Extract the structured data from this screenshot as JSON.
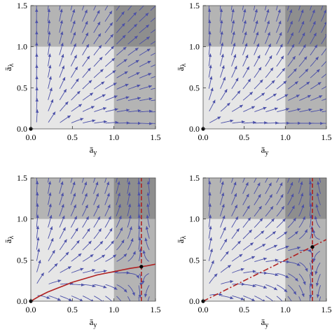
{
  "chart_data": [
    {
      "type": "streamplot",
      "panel": "top-left",
      "xlabel": "a_y",
      "ylabel": "a_λ",
      "xlim": [
        0,
        1.5
      ],
      "ylim": [
        0,
        1.5
      ],
      "xticks": [
        "0.0",
        "0.5",
        "1.0",
        "1.5"
      ],
      "yticks": [
        "0.0",
        "0.5",
        "1.0",
        "1.5"
      ],
      "shaded_regions": [
        {
          "name": "light",
          "x": [
            0,
            1.0
          ],
          "y": [
            0,
            1.0
          ],
          "color": "#e6e6e6"
        },
        {
          "name": "medium",
          "x": [
            0,
            1.5
          ],
          "y": [
            1.0,
            1.5
          ],
          "color": "#b4b4b4"
        },
        {
          "name": "medium",
          "x": [
            1.0,
            1.5
          ],
          "y": [
            0,
            1.0
          ],
          "color": "#b4b4b4"
        },
        {
          "name": "dark",
          "x": [
            1.0,
            1.5
          ],
          "y": [
            1.0,
            1.5
          ],
          "color": "#8e8e8e"
        }
      ],
      "fixed_points": [
        {
          "x": 0,
          "y": 0
        }
      ],
      "red_curves": [],
      "stream_color": "#4a4fa8",
      "curve_color": "#b02020"
    },
    {
      "type": "streamplot",
      "panel": "top-right",
      "xlabel": "a_y",
      "ylabel": "a_λ",
      "xlim": [
        0,
        1.5
      ],
      "ylim": [
        0,
        1.5
      ],
      "xticks": [
        "0.0",
        "0.5",
        "1.0",
        "1.5"
      ],
      "yticks": [
        "0.0",
        "0.5",
        "1.0",
        "1.5"
      ],
      "shaded_regions": [
        {
          "name": "light",
          "x": [
            0,
            1.0
          ],
          "y": [
            0,
            1.0
          ],
          "color": "#e6e6e6"
        },
        {
          "name": "medium",
          "x": [
            0,
            1.5
          ],
          "y": [
            1.0,
            1.5
          ],
          "color": "#b4b4b4"
        },
        {
          "name": "medium",
          "x": [
            1.0,
            1.5
          ],
          "y": [
            0,
            1.0
          ],
          "color": "#b4b4b4"
        },
        {
          "name": "dark",
          "x": [
            1.0,
            1.5
          ],
          "y": [
            1.0,
            1.5
          ],
          "color": "#8e8e8e"
        }
      ],
      "fixed_points": [
        {
          "x": 0,
          "y": 0
        }
      ],
      "red_curves": [],
      "stream_color": "#4a4fa8",
      "curve_color": "#b02020"
    },
    {
      "type": "streamplot",
      "panel": "bottom-left",
      "xlabel": "a_y",
      "ylabel": "a_λ",
      "xlim": [
        0,
        1.5
      ],
      "ylim": [
        0,
        1.5
      ],
      "xticks": [
        "0.0",
        "0.5",
        "1.0",
        "1.5"
      ],
      "yticks": [
        "0.0",
        "0.5",
        "1.0",
        "1.5"
      ],
      "shaded_regions": [
        {
          "name": "light",
          "x": [
            0,
            1.0
          ],
          "y": [
            0,
            1.0
          ],
          "color": "#e6e6e6"
        },
        {
          "name": "medium",
          "x": [
            0,
            1.5
          ],
          "y": [
            1.0,
            1.5
          ],
          "color": "#b4b4b4"
        },
        {
          "name": "medium",
          "x": [
            1.0,
            1.5
          ],
          "y": [
            0,
            1.0
          ],
          "color": "#b4b4b4"
        },
        {
          "name": "dark",
          "x": [
            1.0,
            1.5
          ],
          "y": [
            1.0,
            1.5
          ],
          "color": "#8e8e8e"
        }
      ],
      "fixed_points": [
        {
          "x": 0,
          "y": 0
        },
        {
          "x": 1.33,
          "y": 0.42
        }
      ],
      "red_curves": [
        {
          "style": "solid",
          "points": [
            [
              0,
              0
            ],
            [
              0.1,
              0.06
            ],
            [
              0.2,
              0.11
            ],
            [
              0.3,
              0.15
            ],
            [
              0.4,
              0.19
            ],
            [
              0.5,
              0.23
            ],
            [
              0.6,
              0.26
            ],
            [
              0.7,
              0.29
            ],
            [
              0.8,
              0.32
            ],
            [
              0.9,
              0.34
            ],
            [
              1.0,
              0.36
            ],
            [
              1.1,
              0.38
            ],
            [
              1.2,
              0.4
            ],
            [
              1.33,
              0.42
            ],
            [
              1.4,
              0.43
            ],
            [
              1.5,
              0.45
            ]
          ]
        },
        {
          "style": "dashed",
          "points": [
            [
              1.33,
              0.0
            ],
            [
              1.33,
              1.5
            ]
          ]
        }
      ],
      "stream_color": "#4a4fa8",
      "curve_color": "#b02020"
    },
    {
      "type": "streamplot",
      "panel": "bottom-right",
      "xlabel": "a_y",
      "ylabel": "a_λ",
      "xlim": [
        0,
        1.5
      ],
      "ylim": [
        0,
        1.5
      ],
      "xticks": [
        "0.0",
        "0.5",
        "1.0",
        "1.5"
      ],
      "yticks": [
        "0.0",
        "0.5",
        "1.0",
        "1.5"
      ],
      "shaded_regions": [
        {
          "name": "light",
          "x": [
            0,
            1.0
          ],
          "y": [
            0,
            1.0
          ],
          "color": "#e6e6e6"
        },
        {
          "name": "medium",
          "x": [
            0,
            1.5
          ],
          "y": [
            1.0,
            1.5
          ],
          "color": "#b4b4b4"
        },
        {
          "name": "medium",
          "x": [
            1.0,
            1.5
          ],
          "y": [
            0,
            1.0
          ],
          "color": "#b4b4b4"
        },
        {
          "name": "dark",
          "x": [
            1.0,
            1.5
          ],
          "y": [
            1.0,
            1.5
          ],
          "color": "#8e8e8e"
        }
      ],
      "fixed_points": [
        {
          "x": 0,
          "y": 0
        },
        {
          "x": 1.33,
          "y": 0.66
        }
      ],
      "red_curves": [
        {
          "style": "dashdot",
          "points": [
            [
              0,
              0
            ],
            [
              1.5,
              0.75
            ]
          ]
        },
        {
          "style": "dashed",
          "points": [
            [
              1.33,
              0.0
            ],
            [
              1.33,
              1.5
            ]
          ]
        }
      ],
      "stream_color": "#4a4fa8",
      "curve_color": "#b02020"
    }
  ]
}
